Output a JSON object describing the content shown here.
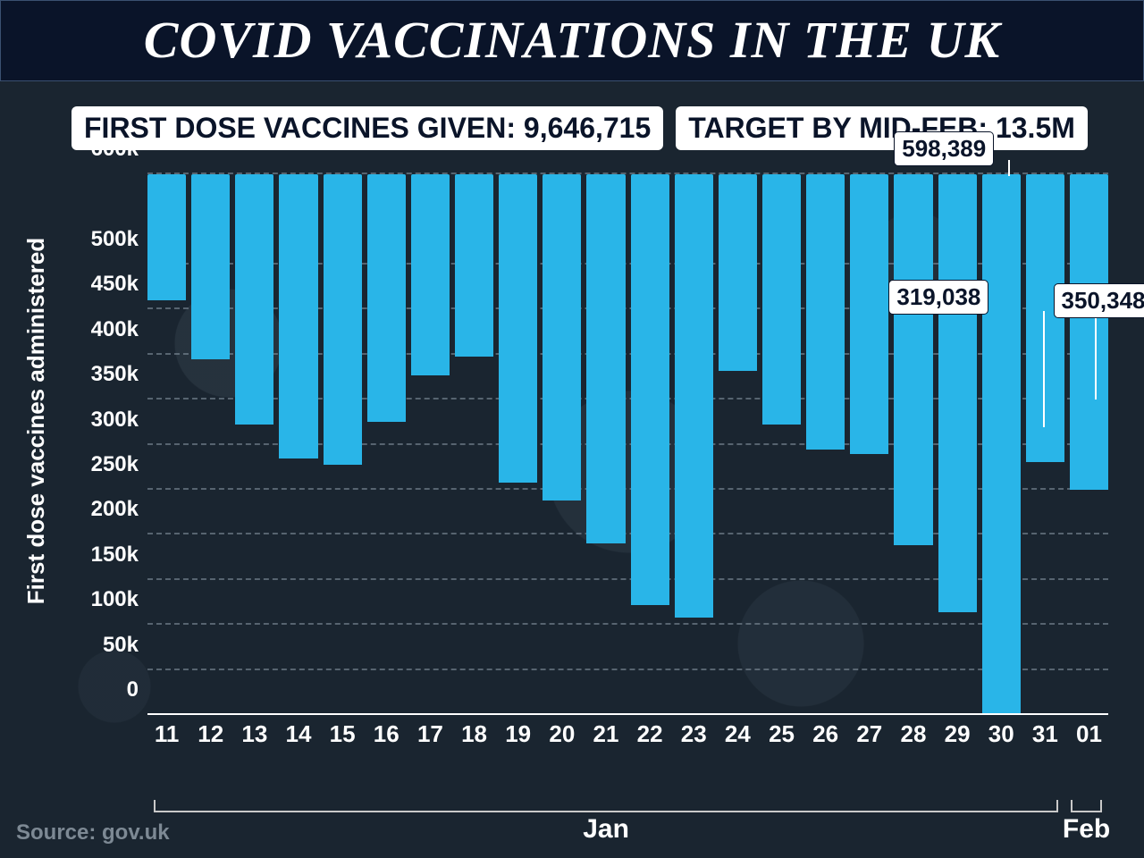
{
  "header": {
    "title": "COVID VACCINATIONS IN THE UK",
    "bg_color": "#0a1429",
    "border_color": "#3a5070",
    "text_color": "#ffffff",
    "font_family": "Georgia serif italic",
    "font_size_pt": 44
  },
  "info_pills": {
    "first_dose": "FIRST DOSE VACCINES GIVEN: 9,646,715",
    "target": "TARGET BY MID-FEB: 13.5M",
    "bg_color": "#ffffff",
    "text_color": "#0a1429",
    "font_size_pt": 24
  },
  "chart": {
    "type": "bar",
    "y_label": "First dose vaccines administered",
    "y_label_fontsize_pt": 20,
    "ylim": [
      0,
      600000
    ],
    "ytick_step": 50000,
    "y_tick_labels": [
      "0",
      "50k",
      "100k",
      "150k",
      "200k",
      "250k",
      "300k",
      "350k",
      "400k",
      "450k",
      "500k",
      "600k"
    ],
    "y_tick_values": [
      0,
      50000,
      100000,
      150000,
      200000,
      250000,
      300000,
      350000,
      400000,
      450000,
      500000,
      600000
    ],
    "grid_color": "#8a98a5",
    "axis_color": "#ffffff",
    "bar_color": "#29b5e8",
    "background_color": "#1a2530",
    "tick_text_color": "#ffffff",
    "days": [
      "11",
      "12",
      "13",
      "14",
      "15",
      "16",
      "17",
      "18",
      "19",
      "20",
      "21",
      "22",
      "23",
      "24",
      "25",
      "26",
      "27",
      "28",
      "29",
      "30",
      "31",
      "01"
    ],
    "values": [
      140000,
      205000,
      278000,
      315000,
      322000,
      275000,
      223000,
      202000,
      342000,
      362000,
      410000,
      478000,
      492000,
      218000,
      278000,
      305000,
      310000,
      412000,
      486000,
      598389,
      319038,
      350348
    ],
    "months": {
      "jan": {
        "label": "Jan",
        "start_index": 0,
        "end_index": 20
      },
      "feb": {
        "label": "Feb",
        "start_index": 21,
        "end_index": 21
      }
    },
    "callouts": [
      {
        "label": "598,389",
        "bar_index": 19,
        "position": "above"
      },
      {
        "label": "319,038",
        "bar_index": 20,
        "position": "left-above"
      },
      {
        "label": "350,348",
        "bar_index": 21,
        "position": "right-above"
      }
    ]
  },
  "source": {
    "text": "Source: gov.uk",
    "color": "#7d8994",
    "font_size_pt": 18
  }
}
